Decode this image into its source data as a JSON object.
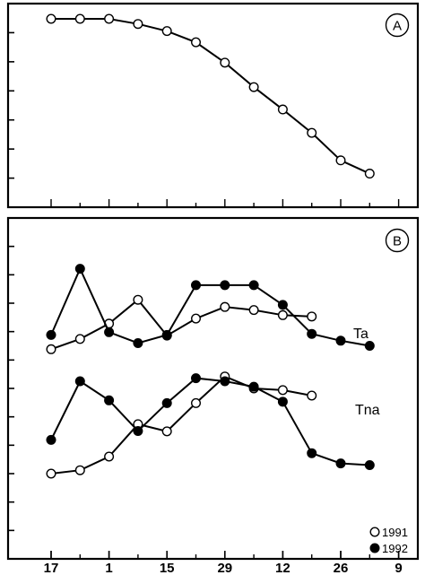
{
  "chart_data": [
    {
      "panel": "A",
      "type": "line",
      "x_ticks": [
        "17",
        "1",
        "15",
        "29",
        "12",
        "26",
        "9"
      ],
      "ylim": [
        0,
        1
      ],
      "series": [
        {
          "x": [
            0,
            1,
            2,
            3,
            4,
            5,
            6,
            7,
            8,
            9,
            10,
            11
          ],
          "y": [
            0.925,
            0.925,
            0.925,
            0.9,
            0.865,
            0.81,
            0.71,
            0.59,
            0.48,
            0.365,
            0.23,
            0.165
          ],
          "marker": "open"
        }
      ]
    },
    {
      "panel": "B",
      "type": "line",
      "x_ticks": [
        "17",
        "1",
        "15",
        "29",
        "12",
        "26",
        "9"
      ],
      "ylim": [
        0,
        1
      ],
      "legend": [
        "1991",
        "1992"
      ],
      "legend_position": "bottom-right",
      "series_labels": [
        "Ta",
        "Tna"
      ],
      "series": [
        {
          "group": "Ta",
          "year": "1991",
          "marker": "open",
          "x": [
            0,
            1,
            2,
            3,
            4,
            5,
            6,
            7,
            8,
            9
          ],
          "y": [
            0.615,
            0.645,
            0.69,
            0.76,
            0.655,
            0.705,
            0.739,
            0.73,
            0.715,
            0.711
          ]
        },
        {
          "group": "Ta",
          "year": "1992",
          "marker": "filled",
          "x": [
            0,
            1,
            2,
            3,
            4,
            5,
            6,
            7,
            8,
            9,
            10,
            11
          ],
          "y": [
            0.657,
            0.851,
            0.665,
            0.633,
            0.657,
            0.803,
            0.803,
            0.803,
            0.745,
            0.66,
            0.64,
            0.625
          ]
        },
        {
          "group": "Tna",
          "year": "1991",
          "marker": "open",
          "x": [
            0,
            1,
            2,
            3,
            4,
            5,
            6,
            7,
            8,
            9
          ],
          "y": [
            0.25,
            0.26,
            0.3,
            0.395,
            0.374,
            0.457,
            0.535,
            0.5,
            0.495,
            0.479
          ]
        },
        {
          "group": "Tna",
          "year": "1992",
          "marker": "filled",
          "x": [
            0,
            1,
            2,
            3,
            4,
            5,
            6,
            7,
            8,
            9,
            10,
            11
          ],
          "y": [
            0.349,
            0.521,
            0.465,
            0.375,
            0.457,
            0.53,
            0.521,
            0.505,
            0.461,
            0.31,
            0.28,
            0.275
          ]
        }
      ]
    }
  ],
  "panel_labels": {
    "a": "A",
    "b": "B"
  },
  "x_axis": {
    "tick_labels": [
      "17",
      "1",
      "15",
      "29",
      "12",
      "26",
      "9"
    ]
  },
  "labels": {
    "ta": "Ta",
    "tna": "Tna"
  },
  "legend": {
    "open_label": "1991",
    "filled_label": "1992"
  }
}
